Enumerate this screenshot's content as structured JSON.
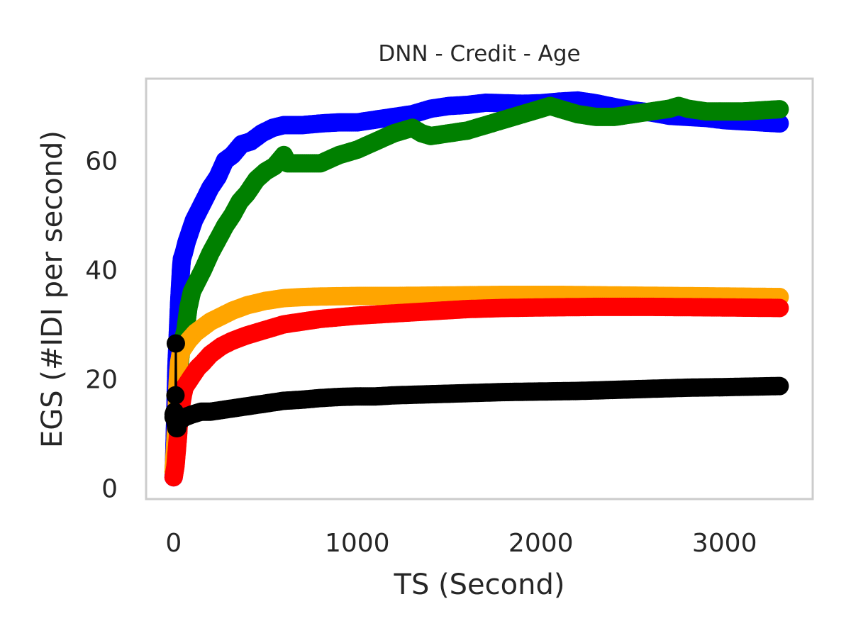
{
  "chart_data": {
    "type": "scatter",
    "title": "DNN - Credit - Age",
    "xlabel": "TS (Second)",
    "ylabel": "EGS (#IDI  per second)",
    "xlim": [
      -150,
      3480
    ],
    "ylim": [
      -2,
      75
    ],
    "xticks": [
      0,
      1000,
      2000,
      3000
    ],
    "yticks": [
      0,
      20,
      40,
      60
    ],
    "grid": false,
    "legend": "none",
    "frame_color": "#cccccc",
    "series": [
      {
        "color": "#0000ff",
        "points": [
          [
            0,
            2
          ],
          [
            5,
            8
          ],
          [
            10,
            15
          ],
          [
            15,
            22
          ],
          [
            20,
            26
          ],
          [
            25,
            30
          ],
          [
            30,
            34
          ],
          [
            35,
            37
          ],
          [
            40,
            40
          ],
          [
            45,
            42
          ],
          [
            55,
            43
          ],
          [
            70,
            45
          ],
          [
            90,
            47
          ],
          [
            110,
            49
          ],
          [
            140,
            51
          ],
          [
            170,
            53
          ],
          [
            200,
            55
          ],
          [
            240,
            57
          ],
          [
            280,
            60
          ],
          [
            320,
            61
          ],
          [
            370,
            63
          ],
          [
            420,
            63.5
          ],
          [
            480,
            65
          ],
          [
            540,
            66
          ],
          [
            600,
            66.5
          ],
          [
            700,
            66.5
          ],
          [
            800,
            66.8
          ],
          [
            900,
            67
          ],
          [
            1000,
            67
          ],
          [
            1100,
            67.5
          ],
          [
            1200,
            68
          ],
          [
            1300,
            68.5
          ],
          [
            1400,
            69.5
          ],
          [
            1500,
            70
          ],
          [
            1600,
            70.2
          ],
          [
            1700,
            70.6
          ],
          [
            1800,
            70.5
          ],
          [
            1900,
            70.4
          ],
          [
            2000,
            70.5
          ],
          [
            2100,
            70.8
          ],
          [
            2200,
            71
          ],
          [
            2300,
            70.5
          ],
          [
            2400,
            69.8
          ],
          [
            2500,
            69.2
          ],
          [
            2600,
            68.8
          ],
          [
            2700,
            68.2
          ],
          [
            2800,
            68
          ],
          [
            2900,
            67.8
          ],
          [
            3000,
            67.4
          ],
          [
            3100,
            67.2
          ],
          [
            3200,
            67
          ],
          [
            3300,
            66.8
          ]
        ]
      },
      {
        "color": "#008000",
        "points": [
          [
            0,
            3
          ],
          [
            5,
            5
          ],
          [
            10,
            6
          ],
          [
            15,
            8
          ],
          [
            20,
            12
          ],
          [
            25,
            17
          ],
          [
            30,
            22
          ],
          [
            40,
            25
          ],
          [
            50,
            27
          ],
          [
            65,
            29
          ],
          [
            80,
            33
          ],
          [
            100,
            36
          ],
          [
            130,
            38
          ],
          [
            160,
            40
          ],
          [
            200,
            43
          ],
          [
            240,
            45.5
          ],
          [
            280,
            48
          ],
          [
            320,
            50
          ],
          [
            360,
            52.5
          ],
          [
            400,
            54
          ],
          [
            450,
            56.5
          ],
          [
            500,
            58
          ],
          [
            550,
            59
          ],
          [
            600,
            61
          ],
          [
            620,
            59.5
          ],
          [
            700,
            59.5
          ],
          [
            800,
            59.5
          ],
          [
            900,
            61
          ],
          [
            1000,
            62
          ],
          [
            1100,
            63.5
          ],
          [
            1200,
            65
          ],
          [
            1300,
            66
          ],
          [
            1350,
            65
          ],
          [
            1400,
            64.5
          ],
          [
            1500,
            65
          ],
          [
            1600,
            65.5
          ],
          [
            1700,
            66.5
          ],
          [
            1800,
            67.5
          ],
          [
            1900,
            68.5
          ],
          [
            2000,
            69.5
          ],
          [
            2050,
            70
          ],
          [
            2100,
            69.5
          ],
          [
            2200,
            68.5
          ],
          [
            2300,
            68
          ],
          [
            2400,
            68
          ],
          [
            2500,
            68.5
          ],
          [
            2600,
            69
          ],
          [
            2700,
            69.5
          ],
          [
            2750,
            70
          ],
          [
            2800,
            69.5
          ],
          [
            2900,
            69
          ],
          [
            3000,
            69
          ],
          [
            3100,
            69
          ],
          [
            3200,
            69.2
          ],
          [
            3300,
            69.4
          ]
        ]
      },
      {
        "color": "#ffa500",
        "points": [
          [
            0,
            3
          ],
          [
            5,
            6
          ],
          [
            10,
            9
          ],
          [
            15,
            13
          ],
          [
            20,
            18
          ],
          [
            25,
            21
          ],
          [
            30,
            23
          ],
          [
            40,
            25
          ],
          [
            60,
            26
          ],
          [
            80,
            27
          ],
          [
            120,
            28.5
          ],
          [
            160,
            29.5
          ],
          [
            200,
            30.5
          ],
          [
            260,
            31.5
          ],
          [
            320,
            32.5
          ],
          [
            400,
            33.5
          ],
          [
            500,
            34.3
          ],
          [
            600,
            34.8
          ],
          [
            700,
            35
          ],
          [
            800,
            35.1
          ],
          [
            1000,
            35.2
          ],
          [
            1200,
            35.2
          ],
          [
            1500,
            35.3
          ],
          [
            1800,
            35.4
          ],
          [
            2100,
            35.4
          ],
          [
            2400,
            35.3
          ],
          [
            2700,
            35.2
          ],
          [
            3000,
            35.1
          ],
          [
            3300,
            35
          ]
        ]
      },
      {
        "color": "#ff0000",
        "points": [
          [
            0,
            2
          ],
          [
            5,
            3
          ],
          [
            10,
            4
          ],
          [
            15,
            6
          ],
          [
            20,
            8
          ],
          [
            25,
            10
          ],
          [
            30,
            13
          ],
          [
            40,
            15
          ],
          [
            50,
            17
          ],
          [
            60,
            18.5
          ],
          [
            80,
            19.5
          ],
          [
            100,
            20.5
          ],
          [
            130,
            22
          ],
          [
            160,
            23
          ],
          [
            200,
            24.5
          ],
          [
            260,
            26
          ],
          [
            320,
            27
          ],
          [
            400,
            28
          ],
          [
            500,
            29
          ],
          [
            600,
            30
          ],
          [
            700,
            30.5
          ],
          [
            800,
            31
          ],
          [
            900,
            31.3
          ],
          [
            1000,
            31.6
          ],
          [
            1200,
            32
          ],
          [
            1400,
            32.4
          ],
          [
            1600,
            32.8
          ],
          [
            1800,
            33
          ],
          [
            2000,
            33.1
          ],
          [
            2300,
            33.2
          ],
          [
            2600,
            33.2
          ],
          [
            3000,
            33.1
          ],
          [
            3300,
            33
          ]
        ]
      },
      {
        "color": "#000000",
        "points": [
          [
            0,
            13
          ],
          [
            5,
            14
          ],
          [
            10,
            12
          ],
          [
            15,
            11
          ],
          [
            20,
            12
          ],
          [
            25,
            12.5
          ],
          [
            40,
            12.5
          ],
          [
            60,
            13
          ],
          [
            100,
            13.5
          ],
          [
            150,
            14
          ],
          [
            200,
            14
          ],
          [
            300,
            14.5
          ],
          [
            400,
            15
          ],
          [
            500,
            15.5
          ],
          [
            600,
            16
          ],
          [
            700,
            16.2
          ],
          [
            800,
            16.5
          ],
          [
            900,
            16.7
          ],
          [
            1000,
            16.8
          ],
          [
            1100,
            16.8
          ],
          [
            1200,
            17
          ],
          [
            1400,
            17.2
          ],
          [
            1600,
            17.4
          ],
          [
            1800,
            17.6
          ],
          [
            2000,
            17.7
          ],
          [
            2200,
            17.8
          ],
          [
            2400,
            18
          ],
          [
            2600,
            18.2
          ],
          [
            2800,
            18.4
          ],
          [
            3000,
            18.5
          ],
          [
            3300,
            18.7
          ]
        ],
        "highlight_points": [
          [
            0,
            13.5
          ],
          [
            10,
            17
          ],
          [
            12,
            26.5
          ],
          [
            15,
            12
          ],
          [
            20,
            11
          ]
        ]
      }
    ]
  }
}
